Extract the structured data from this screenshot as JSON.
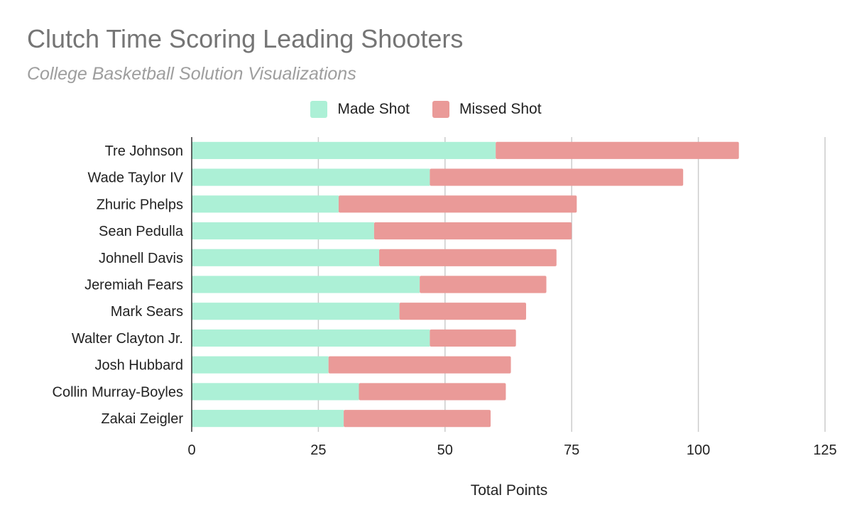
{
  "chart_data": {
    "type": "bar",
    "orientation": "horizontal",
    "stacked": true,
    "title": "Clutch Time Scoring Leading Shooters",
    "subtitle": "College Basketball Solution Visualizations",
    "xlabel": "Total Points",
    "ylabel": "",
    "xlim": [
      0,
      125
    ],
    "xticks": [
      "0",
      "25",
      "50",
      "75",
      "100",
      "125"
    ],
    "grid": true,
    "legend_position": "top",
    "categories": [
      "Tre Johnson",
      "Wade Taylor IV",
      "Zhuric Phelps",
      "Sean Pedulla",
      "Johnell Davis",
      "Jeremiah Fears",
      "Mark Sears",
      "Walter Clayton Jr.",
      "Josh Hubbard",
      "Collin Murray-Boyles",
      "Zakai Zeigler"
    ],
    "series": [
      {
        "name": "Made Shot",
        "color": "#acf0d6",
        "values": [
          60,
          47,
          29,
          36,
          37,
          45,
          41,
          47,
          27,
          33,
          30
        ]
      },
      {
        "name": "Missed Shot",
        "color": "#ea9a98",
        "values": [
          48,
          50,
          47,
          39,
          35,
          25,
          25,
          17,
          36,
          29,
          29
        ]
      }
    ]
  }
}
